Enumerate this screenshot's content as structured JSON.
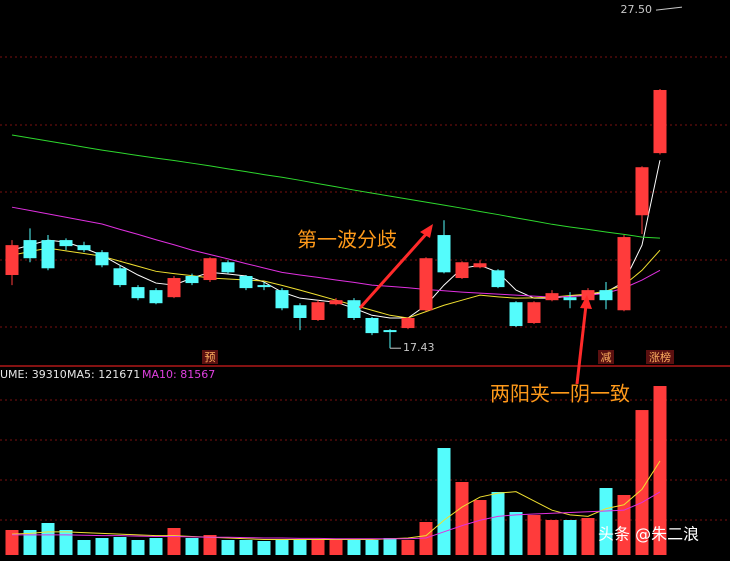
{
  "chart_data": [
    {
      "type": "candlestick",
      "categories": [
        null,
        null,
        null,
        null,
        null,
        null,
        null,
        null,
        null,
        null,
        null,
        "预",
        null,
        null,
        null,
        null,
        null,
        null,
        null,
        null,
        null,
        null,
        null,
        null,
        null,
        null,
        null,
        null,
        null,
        null,
        null,
        null,
        null,
        "减",
        null,
        null,
        "涨榜"
      ],
      "open": [
        19.61,
        20.65,
        20.65,
        20.65,
        20.5,
        20.29,
        19.81,
        19.25,
        19.16,
        18.95,
        19.58,
        19.46,
        19.99,
        19.58,
        19.31,
        19.16,
        18.71,
        18.27,
        18.74,
        18.86,
        18.33,
        17.97,
        18.03,
        18.56,
        20.8,
        19.52,
        19.84,
        19.75,
        18.8,
        18.18,
        18.86,
        18.95,
        18.86,
        19.16,
        18.56,
        21.39,
        23.24
      ],
      "high": [
        20.65,
        21.0,
        20.8,
        20.7,
        20.6,
        20.35,
        19.9,
        19.31,
        19.22,
        19.58,
        19.65,
        20.14,
        20.05,
        19.61,
        19.4,
        19.22,
        18.77,
        18.86,
        18.92,
        18.92,
        18.36,
        18.0,
        18.36,
        20.14,
        21.24,
        20.02,
        20.05,
        19.78,
        18.83,
        18.83,
        19.16,
        19.1,
        19.22,
        19.4,
        20.8,
        22.85,
        25.15
      ],
      "low": [
        19.31,
        19.99,
        19.75,
        20.35,
        20.29,
        19.84,
        19.25,
        18.86,
        18.74,
        18.92,
        19.31,
        19.4,
        19.66,
        19.16,
        19.16,
        18.56,
        17.97,
        18.24,
        18.71,
        18.27,
        17.82,
        17.43,
        18.0,
        18.53,
        19.66,
        19.49,
        19.81,
        19.22,
        18.06,
        18.15,
        18.83,
        18.62,
        18.8,
        18.59,
        18.53,
        20.83,
        23.2
      ],
      "close": [
        20.5,
        20.11,
        19.81,
        20.47,
        20.35,
        19.9,
        19.31,
        18.92,
        18.77,
        19.52,
        19.37,
        20.11,
        19.69,
        19.22,
        19.25,
        18.62,
        18.33,
        18.8,
        18.86,
        18.33,
        17.88,
        17.91,
        18.33,
        20.11,
        19.69,
        19.99,
        19.96,
        19.25,
        18.09,
        18.8,
        19.07,
        18.86,
        19.16,
        18.86,
        20.74,
        22.82,
        25.12
      ],
      "up_color": "#ff3b3b",
      "down_color": "#54fcfc",
      "series": [
        {
          "color": "#ffffff",
          "values": [
            20.35,
            20.5,
            20.65,
            20.59,
            20.41,
            20.2,
            19.9,
            19.61,
            19.37,
            19.31,
            19.52,
            19.69,
            19.64,
            19.58,
            19.4,
            19.1,
            18.92,
            18.86,
            18.8,
            18.62,
            18.41,
            18.33,
            18.33,
            18.71,
            19.31,
            19.81,
            19.9,
            19.69,
            19.16,
            18.92,
            18.92,
            18.98,
            19.01,
            19.1,
            19.4,
            20.5,
            23.03
          ]
        },
        {
          "color": "#f0e030",
          "values": [
            20.2,
            20.31,
            20.41,
            20.33,
            20.25,
            20.17,
            20.02,
            19.87,
            19.72,
            19.65,
            19.59,
            19.52,
            19.49,
            19.46,
            19.43,
            19.3,
            19.16,
            19.01,
            18.86,
            18.71,
            18.56,
            18.41,
            18.33,
            18.52,
            18.71,
            18.86,
            19.01,
            18.96,
            18.92,
            18.93,
            18.95,
            19.0,
            19.04,
            19.13,
            19.31,
            19.75,
            20.35
          ]
        },
        {
          "color": "#e030e0",
          "values": [
            21.63,
            21.53,
            21.43,
            21.33,
            21.23,
            21.13,
            20.97,
            20.82,
            20.66,
            20.51,
            20.35,
            20.22,
            20.09,
            19.95,
            19.82,
            19.69,
            19.61,
            19.54,
            19.46,
            19.39,
            19.31,
            19.27,
            19.23,
            19.18,
            19.14,
            19.1,
            19.07,
            19.04,
            19.01,
            18.98,
            18.95,
            18.97,
            19.0,
            19.07,
            19.22,
            19.46,
            19.75
          ]
        },
        {
          "color": "#2ed82e",
          "values": [
            23.78,
            23.69,
            23.6,
            23.51,
            23.42,
            23.33,
            23.25,
            23.17,
            23.09,
            23.02,
            22.94,
            22.86,
            22.77,
            22.69,
            22.6,
            22.52,
            22.43,
            22.33,
            22.24,
            22.14,
            22.05,
            21.96,
            21.87,
            21.78,
            21.69,
            21.6,
            21.5,
            21.41,
            21.31,
            21.22,
            21.12,
            21.04,
            20.97,
            20.89,
            20.82,
            20.74,
            20.71
          ]
        }
      ],
      "ylim": [
        16.93,
        27.8
      ],
      "price_labels": [
        {
          "value": 27.5,
          "label": "27.50"
        },
        {
          "value": 17.43,
          "label": "17.43"
        }
      ],
      "annotations": [
        "第一波分歧",
        "两阳夹一阴一致"
      ]
    },
    {
      "type": "bar",
      "values": [
        32350,
        32350,
        41408,
        32350,
        19410,
        21998,
        23292,
        19410,
        21998,
        34938,
        21998,
        25880,
        19410,
        19410,
        18116,
        19410,
        19410,
        19410,
        19410,
        19410,
        19410,
        21998,
        19410,
        42702,
        138458,
        94462,
        71170,
        81522,
        55642,
        51760,
        45290,
        45290,
        47878,
        86698,
        77640,
        187590,
        218686
      ],
      "legend": [
        "UME: 39310",
        "MA5: 121671",
        "MA10: 81567"
      ],
      "series": [
        {
          "color": "#f0e030",
          "values": [
            27000,
            28000,
            30000,
            30000,
            29000,
            28000,
            27000,
            26000,
            25000,
            25000,
            24000,
            23000,
            22000,
            21000,
            20000,
            20000,
            20000,
            20000,
            20000,
            20000,
            20000,
            21000,
            22000,
            25000,
            45000,
            62000,
            75000,
            80000,
            82000,
            70000,
            58000,
            52000,
            50000,
            60000,
            65000,
            85000,
            121671
          ]
        },
        {
          "color": "#e030e0",
          "values": [
            26000,
            26000,
            26000,
            26000,
            25500,
            25000,
            25000,
            24500,
            24000,
            24000,
            23500,
            23000,
            23000,
            22500,
            22000,
            22000,
            21500,
            21500,
            21000,
            21000,
            21000,
            21000,
            21000,
            22000,
            30000,
            38000,
            45000,
            50000,
            52000,
            53000,
            54000,
            55000,
            56000,
            57000,
            58000,
            68000,
            81567
          ]
        }
      ],
      "ylim": [
        0,
        242000
      ]
    }
  ],
  "watermark": "头条 @朱二浪"
}
